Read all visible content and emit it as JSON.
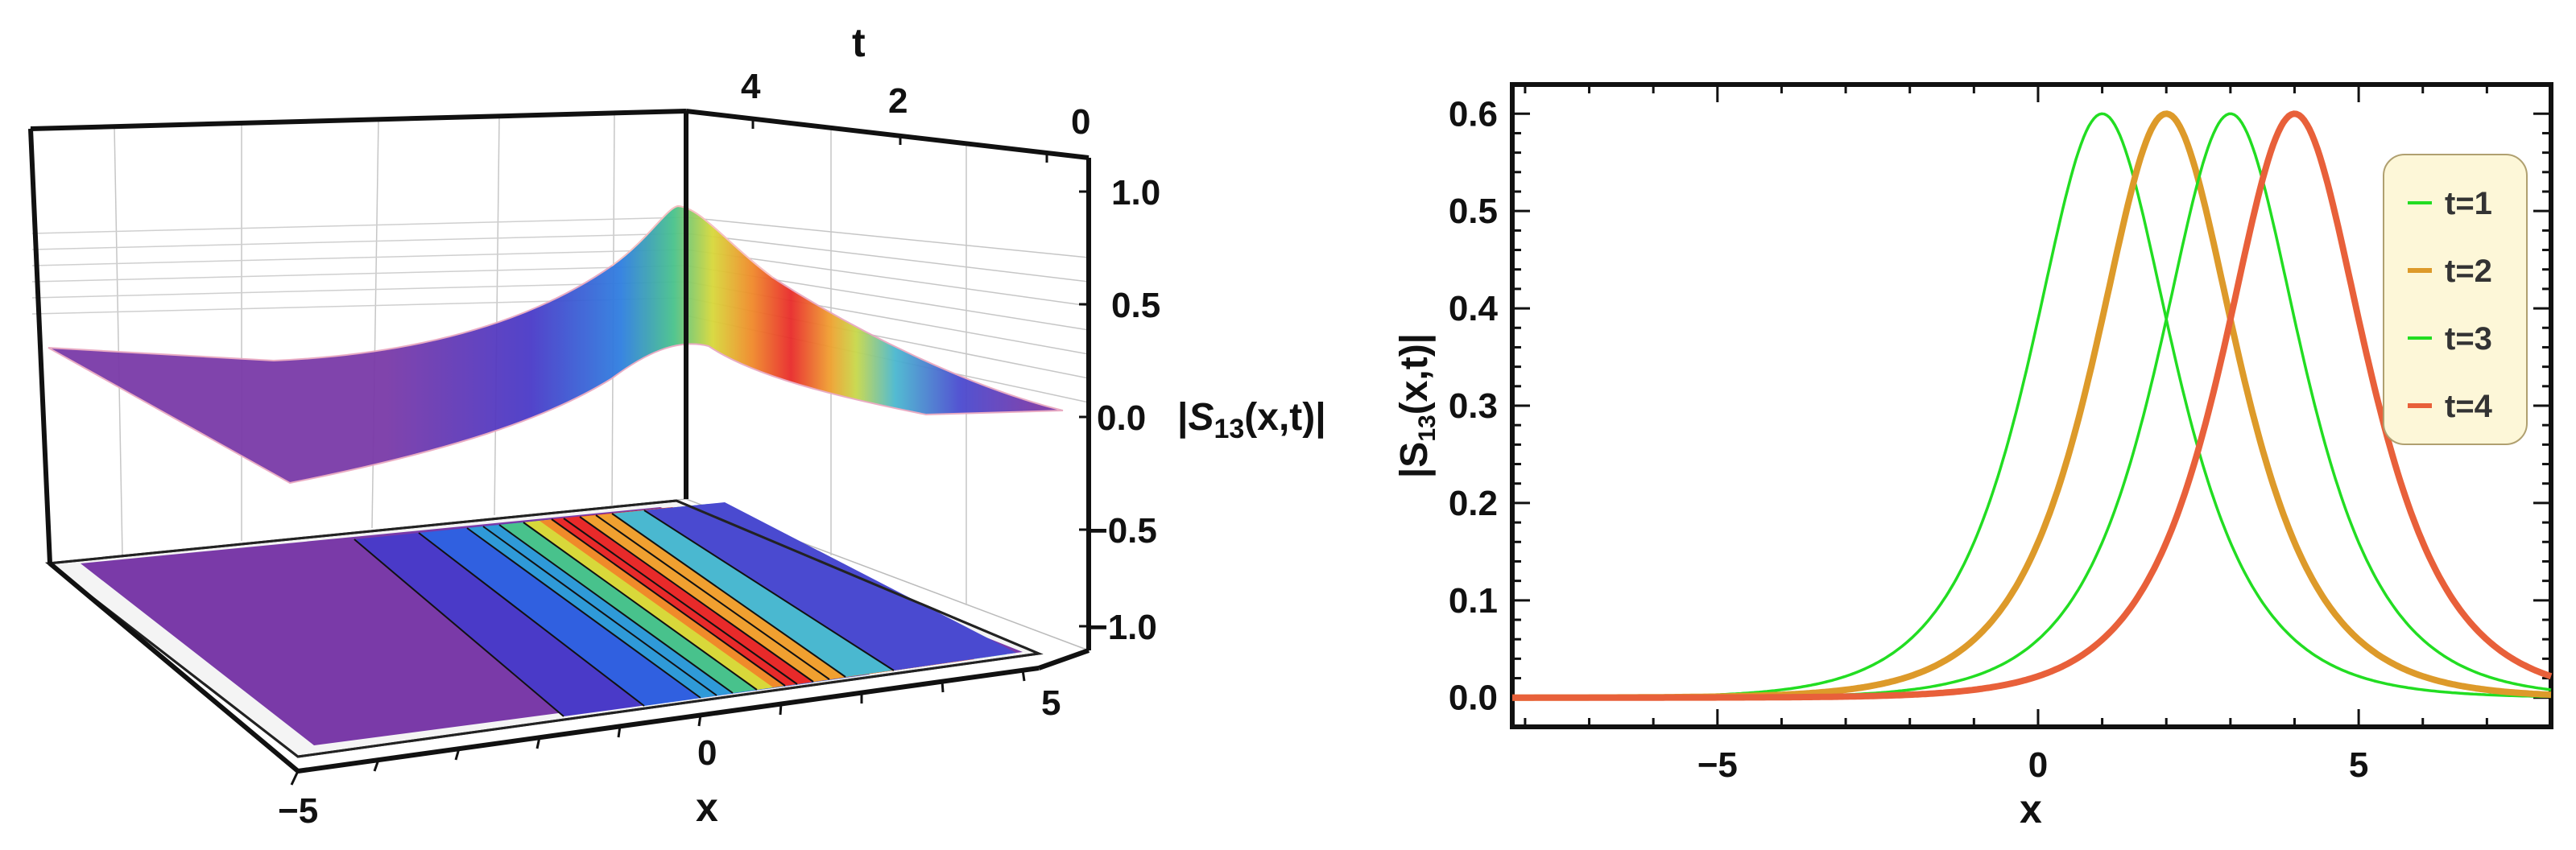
{
  "chart_data": [
    {
      "type": "surface3d",
      "zlabel": "|S13(x,t)|",
      "zlabel_parts": {
        "pre": "|",
        "sym": "S",
        "sub": "13",
        "post": "(x,t)|"
      },
      "xlabel": "x",
      "tlabel": "t",
      "xlim": [
        -5,
        5
      ],
      "tlim": [
        0,
        5
      ],
      "zlim": [
        -1.2,
        1.2
      ],
      "x_ticks": [
        "−5",
        "0",
        "5"
      ],
      "t_ticks": [
        "4",
        "2",
        "0"
      ],
      "z_ticks": [
        "1.0",
        "0.5",
        "0.0",
        "−0.5",
        "−1.0"
      ],
      "peak": 0.6,
      "contour_projection": true,
      "colormap": "rainbow"
    },
    {
      "type": "line",
      "xlabel": "x",
      "ylabel": "|S13(x,t)|",
      "ylabel_parts": {
        "pre": "|S",
        "sub": "13",
        "post": "(x,t)|"
      },
      "xlim": [
        -8.2,
        8
      ],
      "ylim": [
        -0.03,
        0.63
      ],
      "x_ticks": [
        {
          "v": -5,
          "label": "−5"
        },
        {
          "v": 0,
          "label": "0"
        },
        {
          "v": 5,
          "label": "5"
        }
      ],
      "y_ticks": [
        {
          "v": 0.0,
          "label": "0.0"
        },
        {
          "v": 0.1,
          "label": "0.1"
        },
        {
          "v": 0.2,
          "label": "0.2"
        },
        {
          "v": 0.3,
          "label": "0.3"
        },
        {
          "v": 0.4,
          "label": "0.4"
        },
        {
          "v": 0.5,
          "label": "0.5"
        },
        {
          "v": 0.6,
          "label": "0.6"
        }
      ],
      "legend_position": "top-right",
      "series": [
        {
          "name": "t=1",
          "color": "#22dd22",
          "stroke": 3.5,
          "center": 1,
          "amplitude": 0.6
        },
        {
          "name": "t=2",
          "color": "#dd9a2a",
          "stroke": 8,
          "center": 2,
          "amplitude": 0.6
        },
        {
          "name": "t=3",
          "color": "#22dd22",
          "stroke": 3.5,
          "center": 3,
          "amplitude": 0.6
        },
        {
          "name": "t=4",
          "color": "#e8603a",
          "stroke": 8,
          "center": 4,
          "amplitude": 0.6
        }
      ]
    }
  ]
}
